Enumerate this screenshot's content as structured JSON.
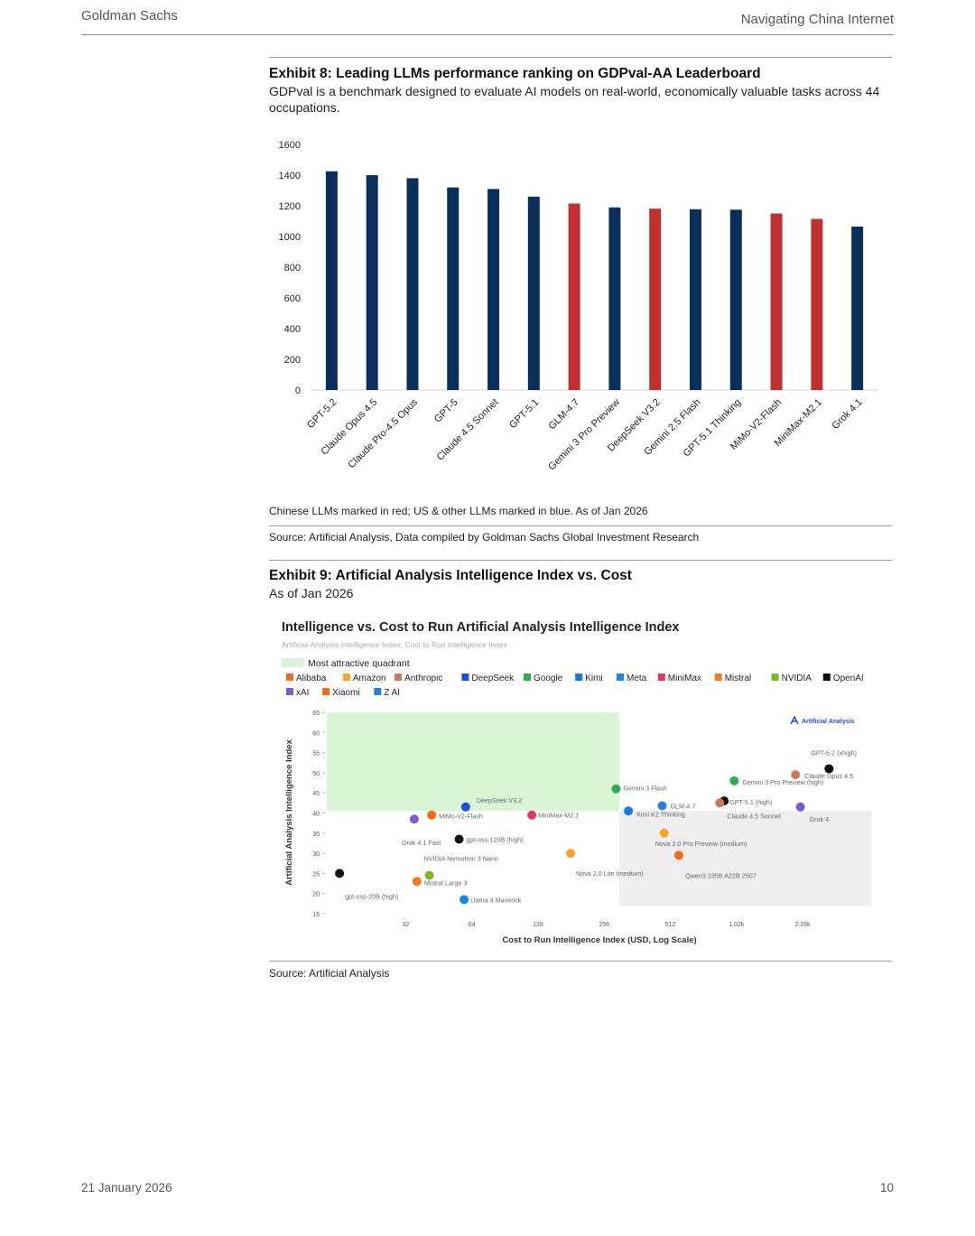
{
  "header": {
    "company": "Goldman Sachs",
    "report": "Navigating China Internet"
  },
  "exhibit8": {
    "title": "Exhibit 8: Leading LLMs performance ranking on GDPval-AA Leaderboard",
    "subtitle": "GDPval is a benchmark designed to evaluate AI models on real-world, economically valuable tasks across 44 occupations.",
    "note": "Chinese LLMs marked in red; US & other LLMs marked in blue. As of Jan 2026",
    "source": "Source: Artificial Analysis, Data compiled by Goldman Sachs Global Investment Research"
  },
  "exhibit9": {
    "title": "Exhibit 9: Artificial Analysis Intelligence Index vs. Cost",
    "subtitle": "As of Jan 2026",
    "source": "Source: Artificial Analysis"
  },
  "footer": {
    "date": "21 January 2026",
    "page": "10"
  },
  "colors": {
    "us": "#0b2f5b",
    "china": "#c0302f"
  },
  "chart_data": [
    {
      "type": "bar",
      "categories": [
        "GPT-5.2",
        "Claude Opus 4.5",
        "Claude Pro-4.5 Opus",
        "GPT-5",
        "Claude 4.5 Sonnet",
        "GPT-5.1",
        "GLM-4.7",
        "Gemini 3 Pro Preview",
        "DeepSeek V3.2",
        "Gemini 2.5 Flash",
        "GPT-5.1 Thinking",
        "MiMo-V2-Flash",
        "MiniMax-M2.1",
        "Grok 4.1"
      ],
      "values": [
        1425,
        1400,
        1380,
        1320,
        1310,
        1260,
        1215,
        1190,
        1182,
        1178,
        1175,
        1150,
        1115,
        1065
      ],
      "groups": [
        "us",
        "us",
        "us",
        "us",
        "us",
        "us",
        "china",
        "us",
        "china",
        "us",
        "us",
        "china",
        "china",
        "us"
      ],
      "yticks": [
        0,
        200,
        400,
        600,
        800,
        1000,
        1200,
        1400,
        1600
      ],
      "ylim": [
        0,
        1600
      ]
    },
    {
      "type": "scatter",
      "title": "Intelligence vs. Cost to Run Artificial Analysis Intelligence Index",
      "subtitle": "Artificial Analysis Intelligence Index; Cost to Run Intelligence Index",
      "xlabel": "Cost to Run Intelligence Index (USD, Log Scale)",
      "ylabel": "Artificial Analysis Intelligence Index",
      "x_scale": "log",
      "xlim": [
        14,
        4200
      ],
      "ylim": [
        15,
        65
      ],
      "xticks": [
        {
          "value": 32,
          "label": "32"
        },
        {
          "value": 64,
          "label": "64"
        },
        {
          "value": 128,
          "label": "128"
        },
        {
          "value": 256,
          "label": "256"
        },
        {
          "value": 512,
          "label": "512"
        },
        {
          "value": 1024,
          "label": "1.02k"
        },
        {
          "value": 2048,
          "label": "2.05k"
        }
      ],
      "yticks": [
        15,
        20,
        25,
        30,
        35,
        40,
        45,
        50,
        55,
        60,
        65
      ],
      "attractive_quadrant": {
        "label": "Most attractive quadrant",
        "x_max": 300,
        "y_min": 40.5,
        "y_max": 65,
        "color": "#d9f5d6"
      },
      "shaded_region": {
        "x_min": 300,
        "y_min": 17,
        "y_max": 40.5,
        "color": "#eeeeee"
      },
      "watermark": "Artificial Analysis",
      "legend": [
        {
          "name": "Alibaba",
          "color": "#f26b21"
        },
        {
          "name": "Amazon",
          "color": "#f5a623"
        },
        {
          "name": "Anthropic",
          "color": "#c9785a"
        },
        {
          "name": "DeepSeek",
          "color": "#1f4fd6"
        },
        {
          "name": "Google",
          "color": "#2fae4f"
        },
        {
          "name": "Kimi",
          "color": "#1778e6"
        },
        {
          "name": "Meta",
          "color": "#1a86e8"
        },
        {
          "name": "MiniMax",
          "color": "#e8336a"
        },
        {
          "name": "Mistral",
          "color": "#f47a1f"
        },
        {
          "name": "NVIDIA",
          "color": "#7ab829"
        },
        {
          "name": "OpenAI",
          "color": "#111111"
        },
        {
          "name": "xAI",
          "color": "#7a5cd0"
        },
        {
          "name": "Xiaomi",
          "color": "#f26b10"
        },
        {
          "name": "Z AI",
          "color": "#2a7de1"
        }
      ],
      "points": [
        {
          "name": "GPT-5.2 (xhigh)",
          "x": 2700,
          "y": 51,
          "org": "OpenAI"
        },
        {
          "name": "Gemini 3 Pro Preview (high)",
          "x": 1000,
          "y": 48,
          "org": "Google"
        },
        {
          "name": "Claude Opus 4.5",
          "x": 1900,
          "y": 49.5,
          "org": "Anthropic"
        },
        {
          "name": "GPT-5.1 (high)",
          "x": 900,
          "y": 43,
          "org": "OpenAI"
        },
        {
          "name": "Claude 4.5 Sonnet",
          "x": 860,
          "y": 42.5,
          "org": "Anthropic"
        },
        {
          "name": "Grok 4",
          "x": 2000,
          "y": 41.5,
          "org": "xAI"
        },
        {
          "name": "Gemini 3 Flash",
          "x": 290,
          "y": 46,
          "org": "Google"
        },
        {
          "name": "Kimi K2 Thinking",
          "x": 330,
          "y": 40.5,
          "org": "Kimi"
        },
        {
          "name": "GLM-4.7",
          "x": 470,
          "y": 41.8,
          "org": "Z AI"
        },
        {
          "name": "DeepSeek V3.2",
          "x": 60,
          "y": 41.5,
          "org": "DeepSeek"
        },
        {
          "name": "MiniMax-M2.1",
          "x": 120,
          "y": 39.5,
          "org": "MiniMax"
        },
        {
          "name": "MiMo-V2-Flash",
          "x": 42,
          "y": 39.5,
          "org": "Xiaomi"
        },
        {
          "name": "Grok 4.1 Fast",
          "x": 35,
          "y": 38.5,
          "org": "xAI"
        },
        {
          "name": "gpt-oss-120B (high)",
          "x": 56,
          "y": 33.5,
          "org": "OpenAI"
        },
        {
          "name": "Nova 2.0 Pro Preview (medium)",
          "x": 480,
          "y": 35,
          "org": "Amazon"
        },
        {
          "name": "Qwen3 235B A22B 2507",
          "x": 560,
          "y": 29.5,
          "org": "Alibaba"
        },
        {
          "name": "Nova 2.0 Lite (medium)",
          "x": 180,
          "y": 30,
          "org": "Amazon"
        },
        {
          "name": "NVIDIA Nemotron 3 Nano",
          "x": 41,
          "y": 24.5,
          "org": "NVIDIA"
        },
        {
          "name": "Mistral Large 3",
          "x": 36,
          "y": 23,
          "org": "Mistral"
        },
        {
          "name": "gpt-oss-20B (high)",
          "x": 16,
          "y": 25,
          "org": "OpenAI"
        },
        {
          "name": "Llama 4 Maverick",
          "x": 59,
          "y": 18.5,
          "org": "Meta"
        }
      ]
    }
  ]
}
